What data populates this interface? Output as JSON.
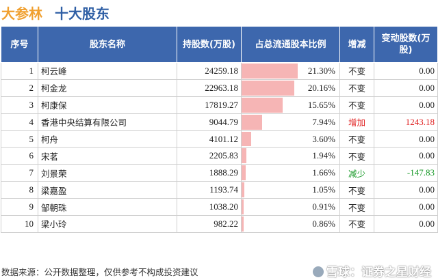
{
  "header": {
    "stock_name": "大参林",
    "subtitle": "十大股东"
  },
  "table": {
    "headers": [
      "序号",
      "股东名称",
      "持股数(万股)",
      "占总流通股本比例",
      "增减",
      "变动股数(万股)"
    ],
    "rows": [
      {
        "idx": "1",
        "name": "柯云峰",
        "shares": "24259.18",
        "ratio": "21.30%",
        "ratio_value": 21.3,
        "change": "不变",
        "change_type": "same",
        "delta": "0.00"
      },
      {
        "idx": "2",
        "name": "柯金龙",
        "shares": "22963.18",
        "ratio": "20.16%",
        "ratio_value": 20.16,
        "change": "不变",
        "change_type": "same",
        "delta": "0.00"
      },
      {
        "idx": "3",
        "name": "柯康保",
        "shares": "17819.27",
        "ratio": "15.65%",
        "ratio_value": 15.65,
        "change": "不变",
        "change_type": "same",
        "delta": "0.00"
      },
      {
        "idx": "4",
        "name": "香港中央结算有限公司",
        "shares": "9044.79",
        "ratio": "7.94%",
        "ratio_value": 7.94,
        "change": "增加",
        "change_type": "up",
        "delta": "1243.18"
      },
      {
        "idx": "5",
        "name": "柯舟",
        "shares": "4101.12",
        "ratio": "3.60%",
        "ratio_value": 3.6,
        "change": "不变",
        "change_type": "same",
        "delta": "0.00"
      },
      {
        "idx": "6",
        "name": "宋茗",
        "shares": "2205.83",
        "ratio": "1.94%",
        "ratio_value": 1.94,
        "change": "不变",
        "change_type": "same",
        "delta": "0.00"
      },
      {
        "idx": "7",
        "name": "刘景荣",
        "shares": "1888.29",
        "ratio": "1.66%",
        "ratio_value": 1.66,
        "change": "减少",
        "change_type": "down",
        "delta": "-147.83"
      },
      {
        "idx": "8",
        "name": "梁嘉盈",
        "shares": "1193.74",
        "ratio": "1.05%",
        "ratio_value": 1.05,
        "change": "不变",
        "change_type": "same",
        "delta": "0.00"
      },
      {
        "idx": "9",
        "name": "邹朝珠",
        "shares": "1038.20",
        "ratio": "0.91%",
        "ratio_value": 0.91,
        "change": "不变",
        "change_type": "same",
        "delta": "0.00"
      },
      {
        "idx": "10",
        "name": "梁小玲",
        "shares": "982.22",
        "ratio": "0.86%",
        "ratio_value": 0.86,
        "change": "不变",
        "change_type": "same",
        "delta": "0.00"
      }
    ]
  },
  "colors": {
    "header_bg": "#3d67ad",
    "bar": "#f6b5b5",
    "up": "#e02020",
    "down": "#1a9a2a",
    "stock_name": "#f0a030",
    "subtitle": "#2f5fa5"
  },
  "footer": {
    "source": "数据来源：公开数据整理，仅供参考不构成投资建议"
  },
  "watermark": {
    "text": "雪球：证券之星财经"
  }
}
